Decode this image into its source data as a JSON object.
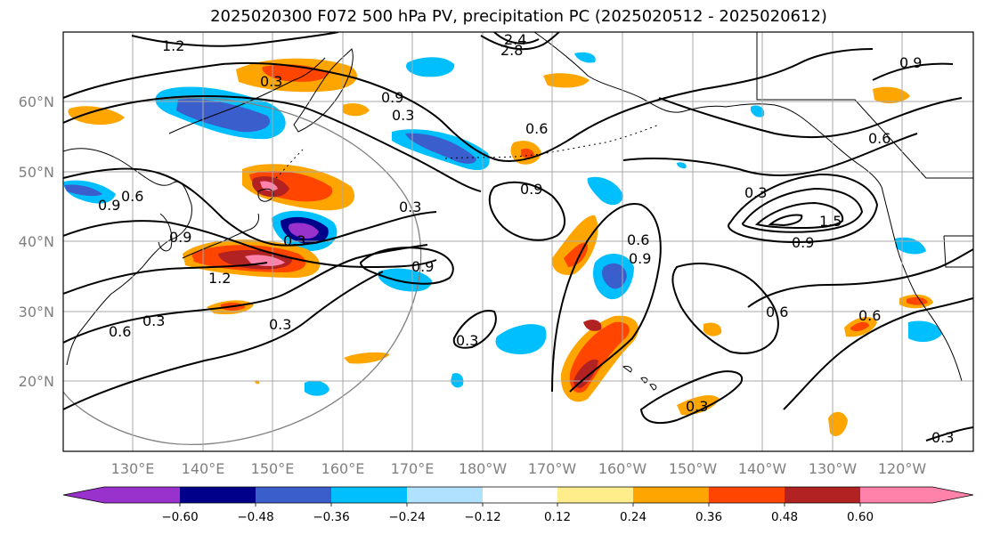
{
  "title": "2025020300 F072 500 hPa PV, precipitation PC (2025020512 - 2025020612)",
  "map": {
    "lat_labels": [
      "60°N",
      "50°N",
      "40°N",
      "30°N",
      "20°N"
    ],
    "lon_labels": [
      "130°E",
      "140°E",
      "150°E",
      "160°E",
      "170°E",
      "180°W",
      "170°W",
      "160°W",
      "150°W",
      "140°W",
      "130°W",
      "120°W"
    ],
    "gridlines": true
  },
  "colorbar": {
    "ticks": [
      "−0.60",
      "−0.48",
      "−0.36",
      "−0.24",
      "−0.12",
      "0.12",
      "0.24",
      "0.36",
      "0.48",
      "0.60"
    ],
    "colors": [
      "#9932CC",
      "#00008B",
      "#3A5FCD",
      "#00BFFF",
      "#B0E2FF",
      "#FFFFFF",
      "#FFEC8B",
      "#FFA500",
      "#FF4500",
      "#B22222",
      "#FF82AB"
    ]
  },
  "contour_labels": [
    "1.2",
    "0.3",
    "0.9",
    "0.6",
    "0.9",
    "0.6",
    "0.3",
    "0.9",
    "0.3",
    "0.9",
    "0.6",
    "0.3",
    "0.3",
    "0.6",
    "0.6",
    "0.9",
    "1.5",
    "0.3",
    "0.6",
    "0.3",
    "0.3",
    "0.3",
    "0.6",
    "0.9",
    "0.9",
    "1.2",
    "2.4",
    "2.8",
    "0.9",
    "0.3"
  ]
}
